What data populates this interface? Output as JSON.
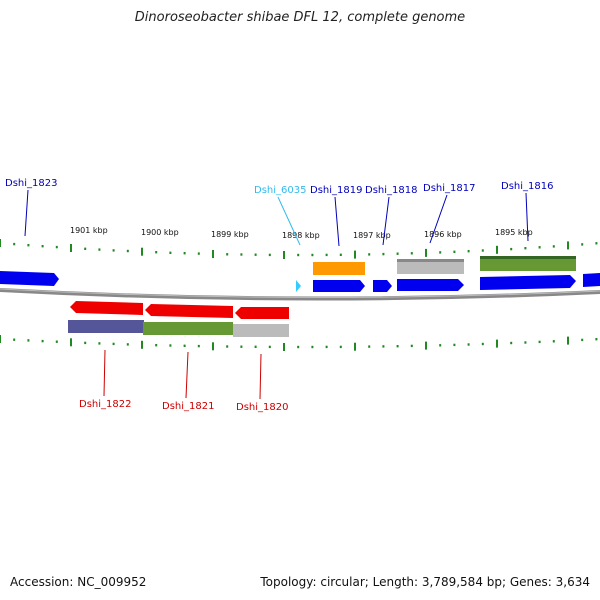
{
  "title": "Dinoroseobacter shibae DFL 12, complete genome",
  "footer": {
    "accession": "Accession: NC_009952",
    "summary": "Topology: circular; Length: 3,789,584 bp; Genes: 3,634"
  },
  "scale_labels": [
    "1901 kbp",
    "1900 kbp",
    "1899 kbp",
    "1898 kbp",
    "1897 kbp",
    "1896 kbp",
    "1895 kbp"
  ],
  "genes_top": [
    {
      "label": "Dshi_1823",
      "color": "#0000bb"
    },
    {
      "label": "Dshi_6035",
      "color": "#33bbee"
    },
    {
      "label": "Dshi_1819",
      "color": "#0000bb"
    },
    {
      "label": "Dshi_1818",
      "color": "#0000bb"
    },
    {
      "label": "Dshi_1817",
      "color": "#0000bb"
    },
    {
      "label": "Dshi_1816",
      "color": "#0000bb"
    }
  ],
  "genes_bottom": [
    {
      "label": "Dshi_1822",
      "color": "#cc0000"
    },
    {
      "label": "Dshi_1821",
      "color": "#cc0000"
    },
    {
      "label": "Dshi_1820",
      "color": "#cc0000"
    }
  ],
  "colors": {
    "forward_gene": "#0000ee",
    "reverse_gene": "#ee0000",
    "small_gene": "#33ccff",
    "backbone": "#888888",
    "ticks": "#228822",
    "orange_feature": "#ff9900",
    "grey_feature": "#bbbbbb",
    "olive_feature": "#669933",
    "purple_feature": "#555599"
  }
}
